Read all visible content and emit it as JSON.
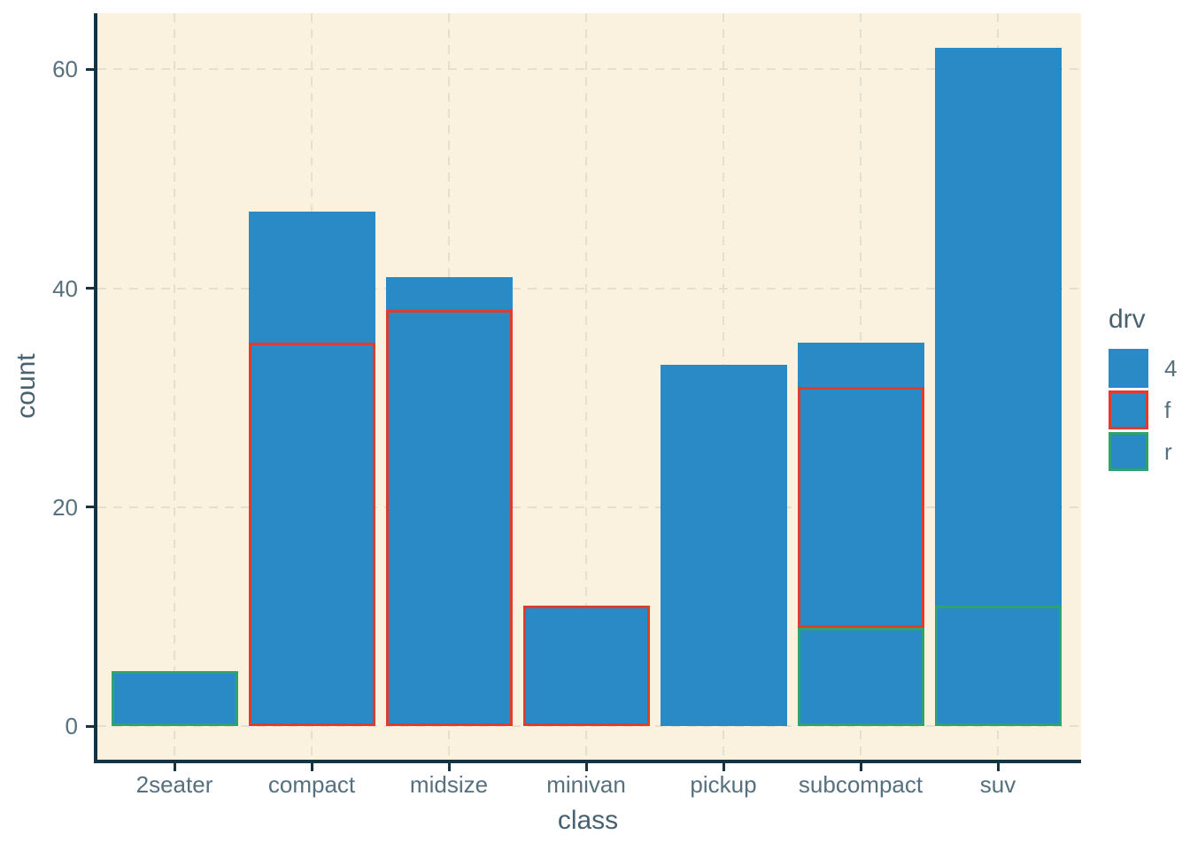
{
  "style": {
    "panel_background": "#faf2df",
    "axis_line_color": "#173340",
    "grid_color": "#e3dfd1",
    "tick_label_color": "#56707e",
    "axis_title_color": "#47616f",
    "bar_fill": "#2a8ac6"
  },
  "chart_data": {
    "type": "bar",
    "stacked": true,
    "title": "",
    "xlabel": "class",
    "ylabel": "count",
    "categories": [
      "2seater",
      "compact",
      "midsize",
      "minivan",
      "pickup",
      "subcompact",
      "suv"
    ],
    "totals": [
      5,
      47,
      41,
      11,
      33,
      35,
      62
    ],
    "segments": [
      [
        {
          "drv": "r",
          "count": 5
        }
      ],
      [
        {
          "drv": "f",
          "count": 35
        },
        {
          "drv": "4",
          "count": 12
        }
      ],
      [
        {
          "drv": "f",
          "count": 38
        },
        {
          "drv": "4",
          "count": 3
        }
      ],
      [
        {
          "drv": "f",
          "count": 11
        }
      ],
      [
        {
          "drv": "4",
          "count": 33
        }
      ],
      [
        {
          "drv": "r",
          "count": 9
        },
        {
          "drv": "f",
          "count": 22
        },
        {
          "drv": "4",
          "count": 4
        }
      ],
      [
        {
          "drv": "r",
          "count": 11
        },
        {
          "drv": "4",
          "count": 51
        }
      ]
    ],
    "y_ticks": [
      0,
      20,
      40,
      60
    ],
    "ylim": [
      -3.1,
      65.1
    ],
    "grid": "dashed major, horizontal at y ticks and vertical at category centers",
    "legend_position": "right",
    "bar_fill": "#2a8ac6",
    "outline_colors": {
      "4": "#2a8ac6",
      "f": "#e13b2d",
      "r": "#2ea36f"
    },
    "legend": {
      "title": "drv",
      "entries": [
        {
          "label": "4",
          "outline": "#2a8ac6"
        },
        {
          "label": "f",
          "outline": "#e13b2d"
        },
        {
          "label": "r",
          "outline": "#2ea36f"
        }
      ]
    }
  }
}
